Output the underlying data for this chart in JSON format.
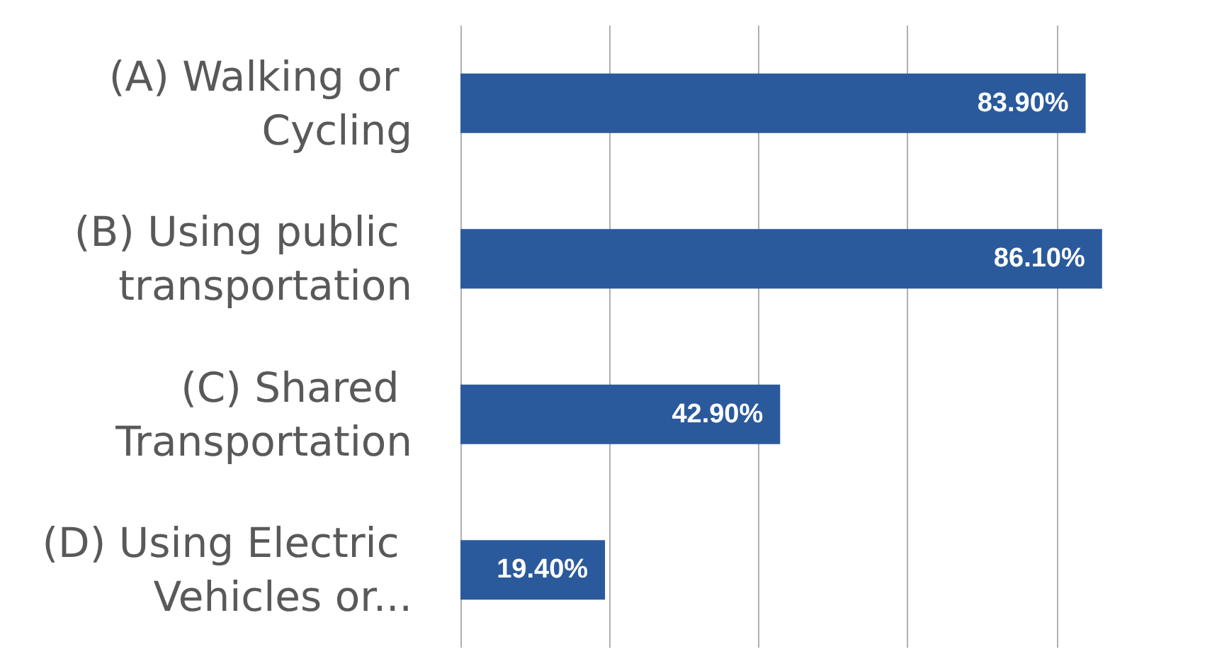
{
  "chart_data": {
    "type": "bar",
    "orientation": "horizontal",
    "categories": [
      "(A) Walking or Cycling",
      "(B) Using public transportation",
      "(C) Shared Transportation",
      "(D) Using Electric Vehicles or..."
    ],
    "values": [
      83.9,
      86.1,
      42.9,
      19.4
    ],
    "value_labels": [
      "83.90%",
      "86.10%",
      "42.90%",
      "19.40%"
    ],
    "color": "#2a5a9c",
    "xticks": [
      {
        "value": 0,
        "label": null
      },
      {
        "value": 20,
        "label": null
      },
      {
        "value": 40,
        "label": null
      },
      {
        "value": 60,
        "label": null
      },
      {
        "value": 80,
        "label": null
      }
    ],
    "grid": "x",
    "tick_labels": "y"
  }
}
